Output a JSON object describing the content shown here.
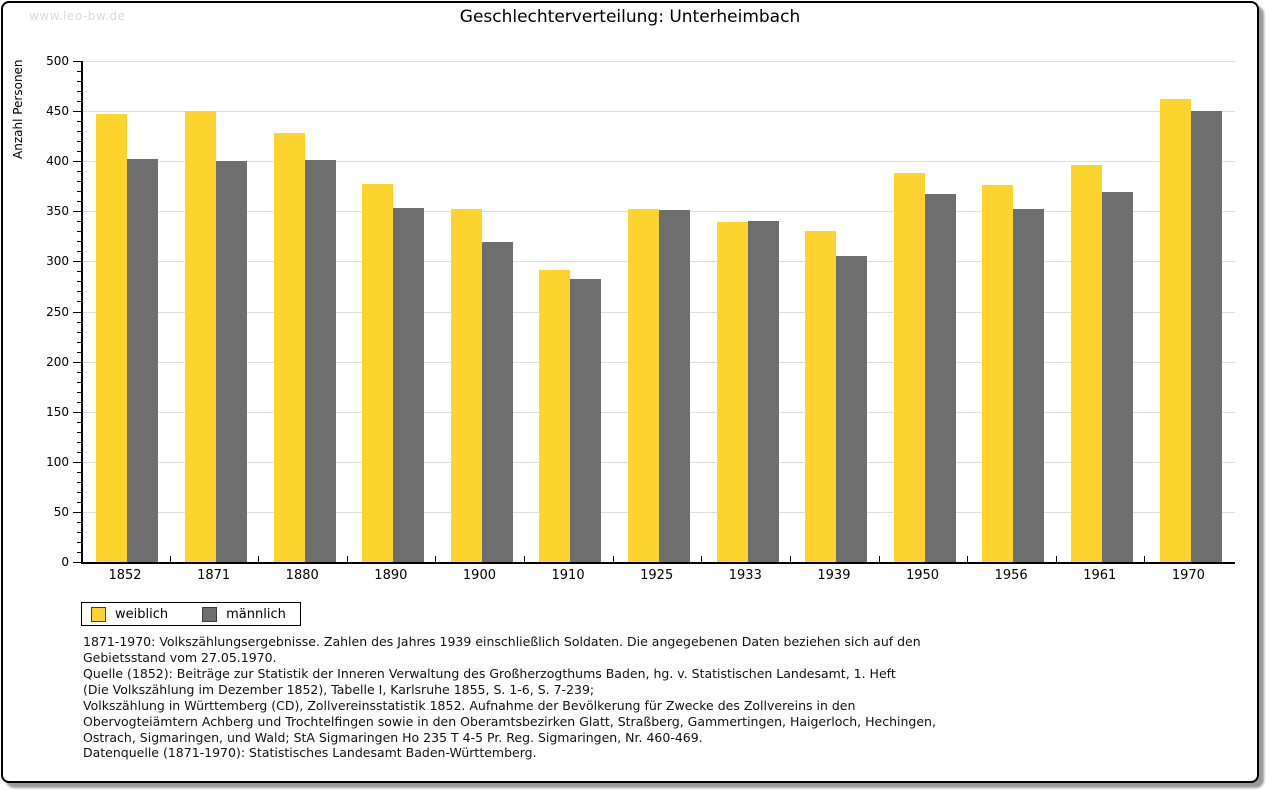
{
  "watermark": "www.leo-bw.de",
  "chart_data": {
    "type": "bar",
    "title": "Geschlechterverteilung: Unterheimbach",
    "xlabel": "",
    "ylabel": "Anzahl Personen",
    "ylim": [
      0,
      500
    ],
    "ytick_major": 50,
    "ytick_minor": 10,
    "grid": true,
    "legend_position": "bottom-left",
    "categories": [
      "1852",
      "1871",
      "1880",
      "1890",
      "1900",
      "1910",
      "1925",
      "1933",
      "1939",
      "1950",
      "1956",
      "1961",
      "1970"
    ],
    "series": [
      {
        "name": "weiblich",
        "color": "#fcd42d",
        "values": [
          447,
          450,
          428,
          377,
          352,
          291,
          352,
          339,
          330,
          388,
          376,
          396,
          462
        ]
      },
      {
        "name": "männlich",
        "color": "#6e6e6e",
        "values": [
          402,
          400,
          401,
          353,
          319,
          282,
          351,
          340,
          305,
          367,
          352,
          369,
          450
        ]
      }
    ]
  },
  "legend": {
    "items": [
      {
        "label": "weiblich",
        "color": "#fcd42d"
      },
      {
        "label": "männlich",
        "color": "#6e6e6e"
      }
    ]
  },
  "footer": {
    "lines": [
      "1871-1970: Volkszählungsergebnisse. Zahlen des Jahres 1939 einschließlich Soldaten. Die angegebenen Daten beziehen sich auf den",
      "Gebietsstand vom 27.05.1970.",
      "Quelle (1852): Beiträge zur Statistik der Inneren Verwaltung des Großherzogthums Baden, hg. v. Statistischen Landesamt, 1. Heft",
      "(Die Volkszählung im Dezember 1852), Tabelle I, Karlsruhe 1855, S. 1-6, S. 7-239;",
      "Volkszählung in Württemberg (CD), Zollvereinsstatistik 1852. Aufnahme der Bevölkerung für Zwecke des Zollvereins in den",
      "Obervogteiämtern Achberg und Trochtelfingen sowie in den Oberamtsbezirken Glatt, Straßberg, Gammertingen, Haigerloch, Hechingen,",
      "Ostrach, Sigmaringen, und Wald; StA Sigmaringen Ho 235 T 4-5 Pr. Reg. Sigmaringen, Nr. 460-469."
    ],
    "datasource": "Datenquelle (1871-1970): Statistisches Landesamt Baden-Württemberg."
  },
  "colors": {
    "weiblich": "#fcd42d",
    "maennlich": "#6e6e6e",
    "gridline": "#dedede",
    "watermark": "#d9d9d9",
    "frame_border": "#000000"
  }
}
